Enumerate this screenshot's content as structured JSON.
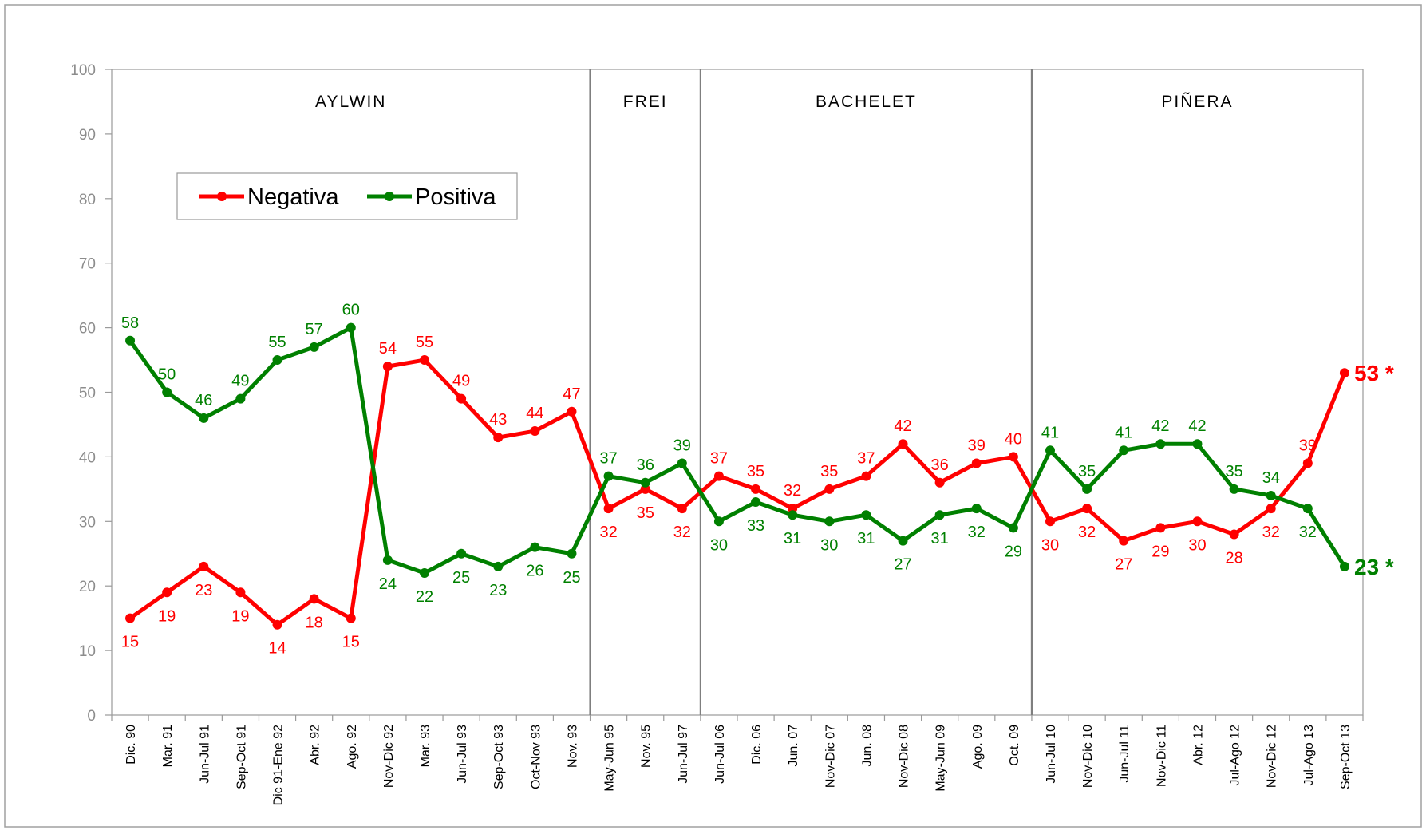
{
  "chart_data": {
    "type": "line",
    "title": "",
    "xlabel": "",
    "ylabel": "",
    "ylim": [
      0,
      100
    ],
    "yticks": [
      0,
      10,
      20,
      30,
      40,
      50,
      60,
      70,
      80,
      90,
      100
    ],
    "grid": false,
    "legend_position": "upper-left",
    "categories": [
      "Dic. 90",
      "Mar. 91",
      "Jun-Jul 91",
      "Sep-Oct 91",
      "Dic 91-Ene 92",
      "Abr. 92",
      "Ago. 92",
      "Nov-Dic 92",
      "Mar. 93",
      "Jun-Jul 93",
      "Sep-Oct 93",
      "Oct-Nov 93",
      "Nov. 93",
      "May-Jun 95",
      "Nov. 95",
      "Jun-Jul 97",
      "Jun-Jul 06",
      "Dic. 06",
      "Jun. 07",
      "Nov-Dic 07",
      "Jun. 08",
      "Nov-Dic 08",
      "May-Jun 09",
      "Ago. 09",
      "Oct. 09",
      "Jun-Jul 10",
      "Nov-Dic 10",
      "Jun-Jul 11",
      "Nov-Dic 11",
      "Abr. 12",
      "Jul-Ago 12",
      "Nov-Dic 12",
      "Jul-Ago 13",
      "Sep-Oct 13"
    ],
    "series": [
      {
        "name": "Negativa",
        "color": "#ff0000",
        "values": [
          15,
          19,
          23,
          19,
          14,
          18,
          15,
          54,
          55,
          49,
          43,
          44,
          47,
          32,
          35,
          32,
          37,
          35,
          32,
          35,
          37,
          42,
          36,
          39,
          40,
          30,
          32,
          27,
          29,
          30,
          28,
          32,
          39,
          53
        ],
        "last_label": "53 *"
      },
      {
        "name": "Positiva",
        "color": "#008000",
        "values": [
          58,
          50,
          46,
          49,
          55,
          57,
          60,
          24,
          22,
          25,
          23,
          26,
          25,
          37,
          36,
          39,
          30,
          33,
          31,
          30,
          31,
          27,
          31,
          32,
          29,
          41,
          35,
          41,
          42,
          42,
          35,
          34,
          32,
          23
        ],
        "last_label": "23 *"
      }
    ],
    "periods": [
      {
        "label": "AYLWIN",
        "start": 0,
        "end": 12
      },
      {
        "label": "FREI",
        "start": 13,
        "end": 15
      },
      {
        "label": "BACHELET",
        "start": 16,
        "end": 24
      },
      {
        "label": "PIÑERA",
        "start": 25,
        "end": 33
      }
    ]
  }
}
